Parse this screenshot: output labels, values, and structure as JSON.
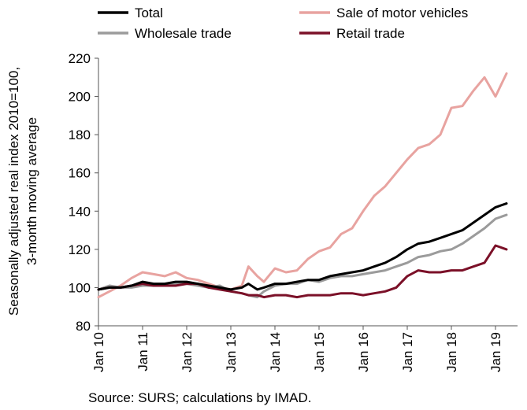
{
  "chart_data": {
    "type": "line",
    "xlabel": "",
    "ylabel": "Seasonally adjusted real index 2010=100,",
    "ylabel2": "3-month moving average",
    "ylim": [
      80,
      220
    ],
    "yticks": [
      "80",
      "100",
      "120",
      "140",
      "160",
      "180",
      "200",
      "220"
    ],
    "xlim": [
      2010,
      2019.5
    ],
    "xticks": [
      {
        "label": "Jan 10",
        "x": 2010
      },
      {
        "label": "Jan 11",
        "x": 2011
      },
      {
        "label": "Jan 12",
        "x": 2012
      },
      {
        "label": "Jan 13",
        "x": 2013
      },
      {
        "label": "Jan 14",
        "x": 2014
      },
      {
        "label": "Jan 15",
        "x": 2015
      },
      {
        "label": "Jan 16",
        "x": 2016
      },
      {
        "label": "Jan 17",
        "x": 2017
      },
      {
        "label": "Jan 18",
        "x": 2018
      },
      {
        "label": "Jan 19",
        "x": 2019
      }
    ],
    "grid": false,
    "legend_position": "top",
    "source": "Source: SURS; calculations by IMAD.",
    "series": [
      {
        "name": "Total",
        "color": "#000000",
        "points": [
          [
            2010.0,
            99
          ],
          [
            2010.25,
            100
          ],
          [
            2010.5,
            100
          ],
          [
            2010.75,
            101
          ],
          [
            2011.0,
            103
          ],
          [
            2011.25,
            102
          ],
          [
            2011.5,
            102
          ],
          [
            2011.75,
            103
          ],
          [
            2012.0,
            103
          ],
          [
            2012.25,
            102
          ],
          [
            2012.5,
            101
          ],
          [
            2012.75,
            100
          ],
          [
            2013.0,
            99
          ],
          [
            2013.25,
            100
          ],
          [
            2013.4,
            102
          ],
          [
            2013.6,
            99
          ],
          [
            2013.75,
            100
          ],
          [
            2014.0,
            102
          ],
          [
            2014.25,
            102
          ],
          [
            2014.5,
            103
          ],
          [
            2014.75,
            104
          ],
          [
            2015.0,
            104
          ],
          [
            2015.25,
            106
          ],
          [
            2015.5,
            107
          ],
          [
            2015.75,
            108
          ],
          [
            2016.0,
            109
          ],
          [
            2016.25,
            111
          ],
          [
            2016.5,
            113
          ],
          [
            2016.75,
            116
          ],
          [
            2017.0,
            120
          ],
          [
            2017.25,
            123
          ],
          [
            2017.5,
            124
          ],
          [
            2017.75,
            126
          ],
          [
            2018.0,
            128
          ],
          [
            2018.25,
            130
          ],
          [
            2018.5,
            134
          ],
          [
            2018.75,
            138
          ],
          [
            2019.0,
            142
          ],
          [
            2019.25,
            144
          ]
        ]
      },
      {
        "name": "Sale of motor vehicles",
        "color": "#e8a3a0",
        "points": [
          [
            2010.0,
            95
          ],
          [
            2010.25,
            98
          ],
          [
            2010.5,
            101
          ],
          [
            2010.75,
            105
          ],
          [
            2011.0,
            108
          ],
          [
            2011.25,
            107
          ],
          [
            2011.5,
            106
          ],
          [
            2011.75,
            108
          ],
          [
            2012.0,
            105
          ],
          [
            2012.25,
            104
          ],
          [
            2012.5,
            102
          ],
          [
            2012.75,
            100
          ],
          [
            2013.0,
            99
          ],
          [
            2013.25,
            101
          ],
          [
            2013.4,
            111
          ],
          [
            2013.6,
            106
          ],
          [
            2013.75,
            103
          ],
          [
            2014.0,
            110
          ],
          [
            2014.25,
            108
          ],
          [
            2014.5,
            109
          ],
          [
            2014.75,
            115
          ],
          [
            2015.0,
            119
          ],
          [
            2015.25,
            121
          ],
          [
            2015.5,
            128
          ],
          [
            2015.75,
            131
          ],
          [
            2016.0,
            140
          ],
          [
            2016.25,
            148
          ],
          [
            2016.5,
            153
          ],
          [
            2016.75,
            160
          ],
          [
            2017.0,
            167
          ],
          [
            2017.25,
            173
          ],
          [
            2017.5,
            175
          ],
          [
            2017.75,
            180
          ],
          [
            2018.0,
            194
          ],
          [
            2018.25,
            195
          ],
          [
            2018.5,
            203
          ],
          [
            2018.75,
            210
          ],
          [
            2019.0,
            200
          ],
          [
            2019.25,
            212
          ]
        ]
      },
      {
        "name": "Wholesale trade",
        "color": "#9b9b9b",
        "points": [
          [
            2010.0,
            99
          ],
          [
            2010.25,
            101
          ],
          [
            2010.5,
            100
          ],
          [
            2010.75,
            100
          ],
          [
            2011.0,
            101
          ],
          [
            2011.25,
            101
          ],
          [
            2011.5,
            101
          ],
          [
            2011.75,
            102
          ],
          [
            2012.0,
            102
          ],
          [
            2012.25,
            101
          ],
          [
            2012.5,
            100
          ],
          [
            2012.75,
            101
          ],
          [
            2013.0,
            98
          ],
          [
            2013.25,
            97
          ],
          [
            2013.4,
            96
          ],
          [
            2013.6,
            95
          ],
          [
            2013.75,
            98
          ],
          [
            2014.0,
            101
          ],
          [
            2014.25,
            102
          ],
          [
            2014.5,
            102
          ],
          [
            2014.75,
            104
          ],
          [
            2015.0,
            103
          ],
          [
            2015.25,
            105
          ],
          [
            2015.5,
            106
          ],
          [
            2015.75,
            106
          ],
          [
            2016.0,
            107
          ],
          [
            2016.25,
            108
          ],
          [
            2016.5,
            109
          ],
          [
            2016.75,
            111
          ],
          [
            2017.0,
            113
          ],
          [
            2017.25,
            116
          ],
          [
            2017.5,
            117
          ],
          [
            2017.75,
            119
          ],
          [
            2018.0,
            120
          ],
          [
            2018.25,
            123
          ],
          [
            2018.5,
            127
          ],
          [
            2018.75,
            131
          ],
          [
            2019.0,
            136
          ],
          [
            2019.25,
            138
          ]
        ]
      },
      {
        "name": "Retail trade",
        "color": "#7b1028",
        "points": [
          [
            2010.0,
            99
          ],
          [
            2010.25,
            100
          ],
          [
            2010.5,
            100
          ],
          [
            2010.75,
            101
          ],
          [
            2011.0,
            102
          ],
          [
            2011.25,
            101
          ],
          [
            2011.5,
            101
          ],
          [
            2011.75,
            101
          ],
          [
            2012.0,
            102
          ],
          [
            2012.25,
            102
          ],
          [
            2012.5,
            100
          ],
          [
            2012.75,
            99
          ],
          [
            2013.0,
            98
          ],
          [
            2013.25,
            97
          ],
          [
            2013.4,
            96
          ],
          [
            2013.6,
            96
          ],
          [
            2013.75,
            95
          ],
          [
            2014.0,
            96
          ],
          [
            2014.25,
            96
          ],
          [
            2014.5,
            95
          ],
          [
            2014.75,
            96
          ],
          [
            2015.0,
            96
          ],
          [
            2015.25,
            96
          ],
          [
            2015.5,
            97
          ],
          [
            2015.75,
            97
          ],
          [
            2016.0,
            96
          ],
          [
            2016.25,
            97
          ],
          [
            2016.5,
            98
          ],
          [
            2016.75,
            100
          ],
          [
            2017.0,
            106
          ],
          [
            2017.25,
            109
          ],
          [
            2017.5,
            108
          ],
          [
            2017.75,
            108
          ],
          [
            2018.0,
            109
          ],
          [
            2018.25,
            109
          ],
          [
            2018.5,
            111
          ],
          [
            2018.75,
            113
          ],
          [
            2019.0,
            122
          ],
          [
            2019.25,
            120
          ]
        ]
      }
    ]
  }
}
